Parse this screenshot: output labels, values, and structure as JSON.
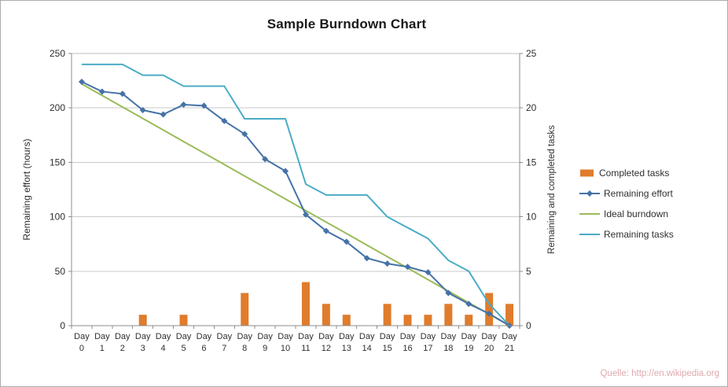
{
  "source_note": "Quelle: http://en.wikipedia.org",
  "chart_data": {
    "type": "bar",
    "subtype": "combo bar + line, dual axis",
    "title": "Sample Burndown Chart",
    "categories": [
      "Day 0",
      "Day 1",
      "Day 2",
      "Day 3",
      "Day 4",
      "Day 5",
      "Day 6",
      "Day 7",
      "Day 8",
      "Day 9",
      "Day 10",
      "Day 11",
      "Day 12",
      "Day 13",
      "Day 14",
      "Day 15",
      "Day 16",
      "Day 17",
      "Day 18",
      "Day 19",
      "Day 20",
      "Day 21"
    ],
    "left_axis": {
      "title": "Remaining effort (hours)",
      "min": 0,
      "max": 250,
      "ticks": [
        0,
        50,
        100,
        150,
        200,
        250
      ]
    },
    "right_axis": {
      "title": "Remaining and completed tasks",
      "min": 0,
      "max": 25,
      "ticks": [
        0,
        5,
        10,
        15,
        20,
        25
      ]
    },
    "grid": true,
    "legend_position": "right",
    "series": [
      {
        "name": "Completed tasks",
        "type": "bar",
        "axis": "right",
        "color": "#E07C2B",
        "values": [
          0,
          0,
          0,
          1,
          0,
          1,
          0,
          0,
          3,
          0,
          0,
          4,
          2,
          1,
          0,
          2,
          1,
          1,
          2,
          1,
          3,
          2
        ]
      },
      {
        "name": "Remaining effort",
        "type": "line",
        "marker": "diamond",
        "axis": "left",
        "color": "#4572A7",
        "values": [
          224,
          215,
          213,
          198,
          194,
          203,
          202,
          188,
          176,
          153,
          142,
          102,
          87,
          77,
          62,
          57,
          54,
          49,
          30,
          20,
          11,
          0
        ]
      },
      {
        "name": "Ideal burndown",
        "type": "line",
        "axis": "left",
        "color": "#9BBB59",
        "values": [
          222,
          211.4,
          200.9,
          190.3,
          179.7,
          169.1,
          158.6,
          148,
          137.4,
          126.9,
          116.3,
          105.7,
          95.1,
          84.6,
          74,
          63.4,
          52.9,
          42.3,
          31.7,
          21.1,
          10.6,
          0
        ]
      },
      {
        "name": "Remaining tasks",
        "type": "line",
        "axis": "right",
        "color": "#4BACC6",
        "values": [
          24,
          24,
          24,
          23,
          23,
          22,
          22,
          22,
          19,
          19,
          19,
          13,
          12,
          12,
          12,
          10,
          9,
          8,
          6,
          5,
          2,
          0
        ]
      }
    ]
  }
}
